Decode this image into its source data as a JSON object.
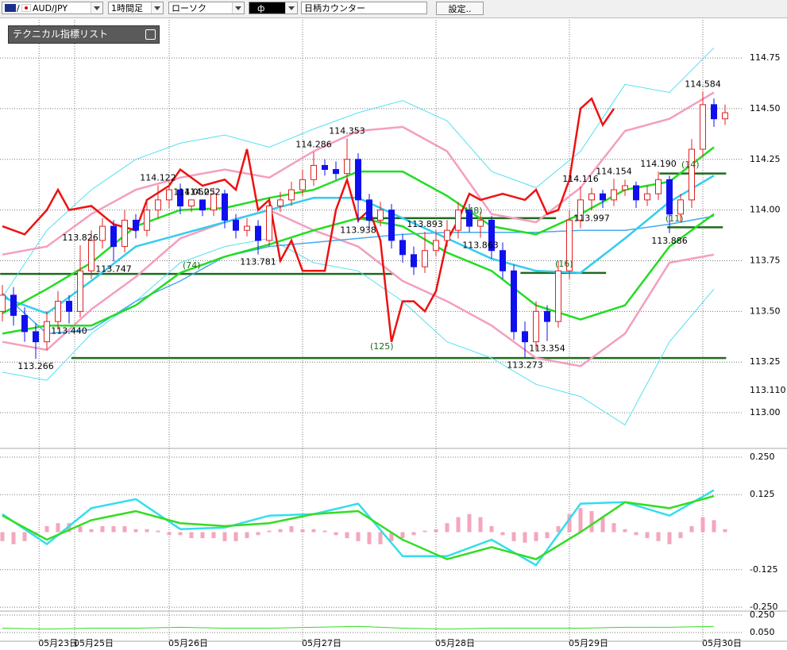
{
  "toolbar": {
    "symbol": "AUD/JPY",
    "timeframe": "1時間足",
    "chart_type": "ローソク",
    "tool": "ф",
    "counter": "日柄カウンター",
    "settings": "設定.."
  },
  "indicator_panel": {
    "title": "テクニカル指標リスト"
  },
  "annotations": [
    "(74)",
    "(125)",
    "(48)",
    "(16)",
    "(14)",
    "(11)"
  ],
  "chart_data": [
    {
      "type": "candlestick",
      "xlim": [
        -0.2,
        66.6
      ],
      "ylim": [
        112.824,
        114.95
      ],
      "grid": true,
      "yticks": [
        114.75,
        {
          "value": 114.5,
          "label": "114.50"
        },
        114.25,
        {
          "value": 114.0,
          "label": "114.00"
        },
        113.75,
        {
          "value": 113.5,
          "label": "113.50"
        },
        113.25,
        {
          "value": 113.0,
          "label": "113.00"
        }
      ],
      "price_marker": {
        "value": 113.11,
        "label": "113.110"
      },
      "xticks": [
        {
          "value": 3.3,
          "label": "05月23日"
        },
        {
          "value": 6.5,
          "label": "05月25日"
        },
        {
          "value": 15,
          "label": "05月26日"
        },
        {
          "value": 27,
          "label": "05月27日"
        },
        {
          "value": 39,
          "label": "05月28日"
        },
        {
          "value": 51,
          "label": "05月29日"
        },
        {
          "value": 63,
          "label": "05月30日"
        }
      ],
      "up_color": "#e02020",
      "down_color": "#1010ee",
      "open": [
        113.5,
        113.58,
        113.48,
        113.4,
        113.35,
        113.45,
        113.55,
        113.5,
        113.7,
        113.85,
        113.92,
        113.82,
        113.95,
        113.9,
        114.0,
        114.05,
        114.1,
        114.02,
        114.05,
        114.0,
        114.08,
        113.95,
        113.9,
        113.92,
        113.85,
        114.02,
        114.05,
        114.1,
        114.15,
        114.22,
        114.2,
        114.18,
        114.25,
        114.05,
        113.95,
        114.0,
        113.85,
        113.78,
        113.72,
        113.8,
        113.85,
        113.9,
        114.0,
        113.92,
        113.95,
        113.8,
        113.7,
        113.4,
        113.35,
        113.5,
        113.45,
        113.7,
        113.95,
        114.05,
        114.08,
        114.05,
        114.1,
        114.12,
        114.05,
        114.08,
        114.15,
        113.98,
        114.05,
        114.3,
        114.52,
        114.45
      ],
      "high": [
        113.63,
        113.62,
        113.52,
        113.44,
        113.5,
        113.6,
        113.58,
        113.826,
        113.9,
        113.96,
        113.95,
        114.0,
        113.98,
        114.05,
        114.122,
        114.14,
        114.13,
        114.052,
        114.052,
        114.11,
        114.1,
        113.98,
        113.96,
        113.95,
        114.06,
        114.09,
        114.14,
        114.2,
        114.286,
        114.25,
        114.24,
        114.353,
        114.28,
        114.08,
        114.04,
        114.03,
        113.88,
        113.82,
        113.893,
        113.9,
        113.95,
        114.04,
        114.03,
        113.99,
        113.97,
        113.84,
        113.73,
        113.45,
        113.55,
        113.53,
        113.75,
        114.0,
        114.116,
        114.11,
        114.1,
        114.154,
        114.15,
        114.14,
        114.12,
        114.19,
        114.17,
        114.08,
        114.35,
        114.584,
        114.55,
        114.52
      ],
      "low": [
        113.45,
        113.43,
        113.35,
        113.266,
        113.31,
        113.41,
        113.44,
        113.47,
        113.66,
        113.81,
        113.747,
        113.79,
        113.86,
        113.87,
        113.96,
        114.01,
        113.98,
        113.99,
        113.97,
        113.97,
        113.91,
        113.86,
        113.87,
        113.781,
        113.82,
        113.99,
        114.02,
        114.07,
        114.12,
        114.17,
        114.15,
        114.15,
        113.938,
        113.91,
        113.92,
        113.81,
        113.74,
        113.68,
        113.69,
        113.77,
        113.82,
        113.86,
        113.89,
        113.863,
        113.76,
        113.66,
        113.36,
        113.273,
        113.31,
        113.354,
        113.42,
        113.66,
        113.91,
        113.997,
        114.01,
        114.02,
        114.07,
        114.01,
        114.02,
        114.05,
        113.886,
        113.94,
        114.01,
        114.26,
        114.41,
        114.42
      ],
      "close": [
        113.58,
        113.48,
        113.4,
        113.35,
        113.45,
        113.55,
        113.5,
        113.7,
        113.85,
        113.92,
        113.82,
        113.95,
        113.9,
        114.0,
        114.05,
        114.1,
        114.02,
        114.05,
        114.0,
        114.08,
        113.95,
        113.9,
        113.92,
        113.85,
        114.02,
        114.05,
        114.1,
        114.15,
        114.22,
        114.2,
        114.18,
        114.25,
        114.05,
        113.95,
        114.0,
        113.85,
        113.78,
        113.72,
        113.8,
        113.85,
        113.9,
        114.0,
        113.92,
        113.95,
        113.8,
        113.7,
        113.4,
        113.35,
        113.5,
        113.45,
        113.7,
        113.95,
        114.05,
        114.08,
        114.05,
        114.1,
        114.12,
        114.05,
        114.08,
        114.15,
        113.98,
        114.05,
        114.3,
        114.52,
        114.45,
        114.48
      ],
      "price_labels": {
        "index": [
          3,
          6,
          7,
          10,
          14,
          17,
          18,
          23,
          28,
          31,
          32,
          38,
          43,
          47,
          49,
          52,
          53,
          55,
          59,
          60,
          63
        ],
        "values": [
          113.266,
          113.44,
          113.826,
          113.747,
          114.122,
          114.052,
          114.052,
          113.781,
          114.286,
          114.353,
          113.938,
          113.893,
          113.863,
          113.273,
          113.354,
          114.116,
          113.997,
          114.154,
          114.19,
          113.886,
          114.584
        ],
        "value_labels": [
          "113.266",
          "113.440",
          "113.826",
          "113.747",
          "114.122",
          "114.052",
          "114.052",
          "113.781",
          "114.286",
          "114.353",
          "113.938",
          "113.893",
          "113.863",
          "113.273",
          "113.354",
          "114.116",
          "113.997",
          "114.154",
          "114.190",
          "113.886",
          "114.584"
        ]
      },
      "levels": [
        {
          "value": 113.685,
          "x": [
            -0.2,
            35.1
          ]
        },
        {
          "value": 113.27,
          "x": [
            6.2,
            65.1
          ]
        },
        {
          "value": 113.96,
          "x": [
            32.3,
            49.8
          ]
        },
        {
          "value": 113.69,
          "x": [
            46.6,
            54.3
          ]
        },
        {
          "value": 114.18,
          "x": [
            59.1,
            65.1
          ]
        },
        {
          "value": 113.915,
          "x": [
            59.8,
            64.8
          ]
        }
      ],
      "level_color": "#1d6a1d",
      "line_x": [
        0,
        4,
        8,
        12,
        16,
        20,
        24,
        28,
        32,
        36,
        40,
        44,
        48,
        52,
        56,
        60,
        64
      ],
      "series": [
        {
          "color": "#55e0f0",
          "width": 1,
          "values": [
            113.57,
            113.9,
            114.1,
            114.25,
            114.33,
            114.37,
            114.31,
            114.4,
            114.48,
            114.54,
            114.44,
            114.19,
            114.11,
            114.29,
            114.62,
            114.58,
            114.8
          ]
        },
        {
          "color": "#55e0f0",
          "width": 1,
          "values": [
            113.2,
            113.16,
            113.39,
            113.55,
            113.74,
            113.82,
            113.86,
            113.74,
            113.7,
            113.55,
            113.35,
            113.27,
            113.14,
            113.08,
            112.94,
            113.35,
            113.61
          ]
        },
        {
          "color": "#f49ec0",
          "width": 2.5,
          "values": [
            113.78,
            113.82,
            113.98,
            114.1,
            114.16,
            114.2,
            114.16,
            114.29,
            114.39,
            114.41,
            114.29,
            113.98,
            113.94,
            114.11,
            114.39,
            114.45,
            114.58
          ]
        },
        {
          "color": "#f49ec0",
          "width": 2.5,
          "values": [
            113.35,
            113.31,
            113.51,
            113.67,
            113.86,
            113.94,
            114.0,
            113.9,
            113.82,
            113.65,
            113.55,
            113.43,
            113.27,
            113.23,
            113.39,
            113.74,
            113.78
          ]
        },
        {
          "color": "#44aaee",
          "width": 1.5,
          "values": [
            113.59,
            113.39,
            113.41,
            113.55,
            113.65,
            113.77,
            113.82,
            113.84,
            113.86,
            113.88,
            113.89,
            113.89,
            113.89,
            113.9,
            113.9,
            113.93,
            113.97
          ]
        },
        {
          "color": "#22dd22",
          "width": 2.5,
          "values": [
            113.39,
            113.43,
            113.43,
            113.53,
            113.69,
            113.77,
            113.83,
            113.9,
            113.96,
            113.92,
            113.79,
            113.7,
            113.53,
            113.46,
            113.53,
            113.82,
            113.98
          ]
        },
        {
          "color": "#33ccee",
          "width": 2.5,
          "values": [
            113.57,
            113.49,
            113.65,
            113.82,
            113.88,
            113.94,
            114.0,
            114.06,
            114.06,
            113.96,
            113.86,
            113.76,
            113.7,
            113.69,
            113.86,
            114.04,
            114.17
          ]
        },
        {
          "color": "#22dd22",
          "width": 2.5,
          "values": [
            113.49,
            113.61,
            113.74,
            113.92,
            114.0,
            114.01,
            114.06,
            114.1,
            114.19,
            114.19,
            114.07,
            113.92,
            113.88,
            113.98,
            114.1,
            114.14,
            114.31
          ]
        },
        {
          "color": "#ee1111",
          "width": 2.5,
          "x": [
            0,
            2,
            4,
            5,
            6,
            8,
            10,
            12,
            13,
            15,
            16,
            18,
            20,
            21,
            22,
            23,
            24,
            25,
            26,
            27,
            29,
            30,
            31,
            32,
            33,
            34,
            35,
            36,
            37,
            38,
            39,
            40,
            41,
            42,
            43,
            45,
            47,
            48,
            49,
            50,
            51,
            52,
            53,
            54,
            55
          ],
          "values": [
            113.92,
            113.88,
            114.0,
            114.1,
            114.0,
            114.02,
            113.93,
            113.9,
            114.05,
            114.12,
            114.2,
            114.12,
            114.15,
            114.1,
            114.3,
            114.0,
            114.05,
            113.75,
            113.85,
            113.7,
            113.7,
            114.0,
            114.15,
            113.95,
            114.0,
            113.85,
            113.35,
            113.55,
            113.55,
            113.5,
            113.6,
            113.85,
            113.95,
            114.08,
            114.05,
            114.08,
            114.05,
            114.1,
            113.98,
            114.0,
            114.15,
            114.5,
            114.55,
            114.42,
            114.5
          ]
        }
      ]
    },
    {
      "type": "macd",
      "xlim": [
        -0.2,
        66.6
      ],
      "ylim": [
        -0.263,
        0.271
      ],
      "grid": true,
      "yticks": [
        {
          "value": 0.25,
          "label": "0.250"
        },
        0.125,
        -0.125,
        {
          "value": -0.25,
          "label": "-0.250"
        }
      ],
      "bar_color": "#f4a6bc",
      "values": [
        -0.03,
        -0.04,
        -0.03,
        -0.01,
        0.02,
        0.03,
        0.03,
        0.02,
        0.01,
        0.02,
        0.02,
        0.02,
        0.01,
        0.01,
        0.005,
        -0.01,
        -0.01,
        -0.02,
        -0.02,
        -0.02,
        -0.03,
        -0.03,
        -0.02,
        -0.01,
        0.005,
        0.01,
        0.02,
        0.01,
        0.01,
        0.005,
        -0.01,
        -0.02,
        -0.03,
        -0.04,
        -0.04,
        -0.03,
        -0.02,
        -0.01,
        0.005,
        0.01,
        0.03,
        0.05,
        0.06,
        0.05,
        0.02,
        -0.01,
        -0.03,
        -0.035,
        -0.03,
        -0.02,
        0.02,
        0.06,
        0.08,
        0.07,
        0.05,
        0.03,
        0.01,
        -0.01,
        -0.02,
        -0.03,
        -0.04,
        -0.02,
        0.02,
        0.05,
        0.04,
        0.01
      ],
      "line_x": [
        0,
        4,
        8,
        12,
        16,
        20,
        24,
        28,
        32,
        36,
        40,
        44,
        48,
        52,
        56,
        60,
        64
      ],
      "series": [
        {
          "color": "#33ddee",
          "width": 2.5,
          "values": [
            0.06,
            -0.04,
            0.08,
            0.11,
            0.01,
            0.015,
            0.055,
            0.06,
            0.095,
            -0.08,
            -0.08,
            -0.025,
            -0.11,
            0.095,
            0.1,
            0.055,
            0.14
          ]
        },
        {
          "color": "#33dd22",
          "width": 2.5,
          "values": [
            0.055,
            -0.025,
            0.04,
            0.07,
            0.03,
            0.02,
            0.03,
            0.06,
            0.07,
            -0.025,
            -0.09,
            -0.05,
            -0.09,
            0.0,
            0.1,
            0.08,
            0.12
          ]
        }
      ]
    },
    {
      "type": "line",
      "xlim": [
        -0.2,
        66.6
      ],
      "ylim": [
        -0.05,
        0.295
      ],
      "grid": true,
      "yticks": [
        {
          "value": 0.25,
          "label": "0.250"
        },
        {
          "value": 0.05,
          "label": "0.050"
        }
      ],
      "line_x": [
        0,
        4,
        8,
        12,
        16,
        20,
        24,
        28,
        32,
        36,
        40,
        44,
        48,
        52,
        56,
        60,
        64
      ],
      "series": [
        {
          "color": "#33dd22",
          "width": 1,
          "values": [
            0.1,
            0.09,
            0.1,
            0.1,
            0.11,
            0.1,
            0.1,
            0.11,
            0.12,
            0.1,
            0.09,
            0.1,
            0.1,
            0.1,
            0.11,
            0.11,
            0.12
          ]
        }
      ]
    }
  ]
}
